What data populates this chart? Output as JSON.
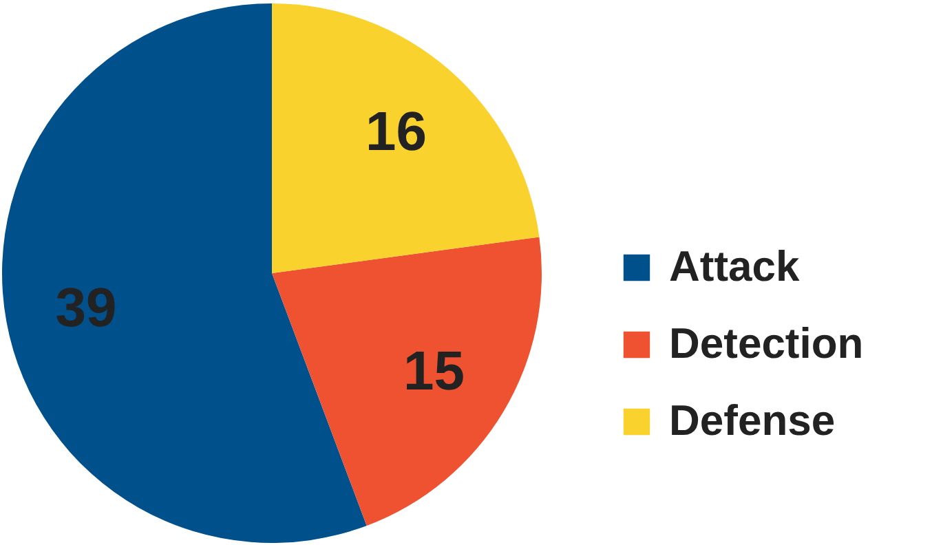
{
  "chart_data": {
    "type": "pie",
    "categories": [
      "Attack",
      "Detection",
      "Defense"
    ],
    "values": [
      39,
      15,
      16
    ],
    "colors": [
      "#00508c",
      "#ee5230",
      "#f9d22e"
    ],
    "data_labels": true,
    "legend": "right"
  }
}
